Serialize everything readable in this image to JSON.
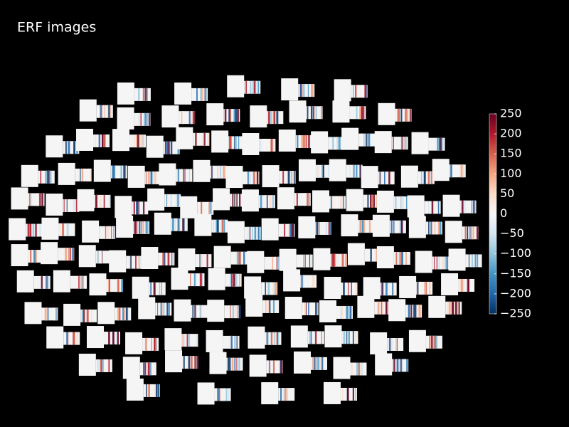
{
  "chart_data": {
    "type": "image-topo",
    "title": "ERF images",
    "clim": [
      -250,
      250
    ],
    "colors": [
      "#053061",
      "#2166ac",
      "#4393c3",
      "#92c5de",
      "#d1e5f0",
      "#f7f7f7",
      "#fddbc7",
      "#f4a582",
      "#d6604d",
      "#b2182b",
      "#67001f"
    ],
    "cticks": [
      {
        "value": -250,
        "label": "−250"
      },
      {
        "value": -200,
        "label": "−200"
      },
      {
        "value": -150,
        "label": "−150"
      },
      {
        "value": -100,
        "label": "−100"
      },
      {
        "value": -50,
        "label": "−50"
      },
      0,
      50,
      100,
      150,
      200,
      250
    ]
  }
}
